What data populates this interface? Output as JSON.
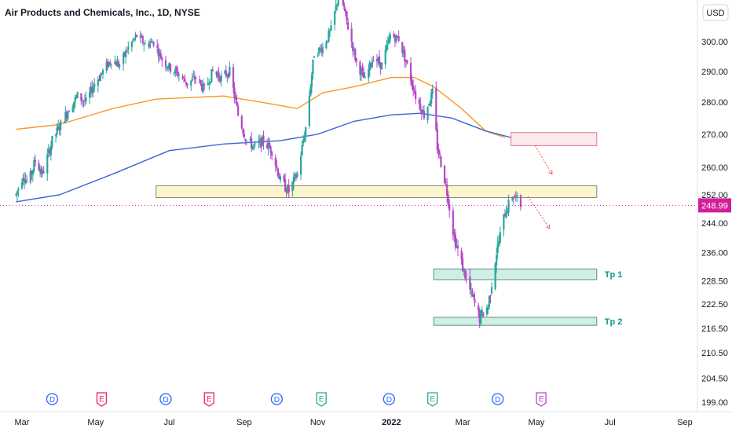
{
  "chart_title": "Air Products and Chemicals, Inc., 1D, NYSE",
  "currency": "USD",
  "current_price": "248.99",
  "colors": {
    "up": "#26a69a",
    "down": "#b548c6",
    "ma_fast": "#f59b23",
    "ma_slow": "#3b65d8",
    "price_line": "#d11f9a",
    "resistance_zone": "#fde9ec",
    "support_zone": "#fcf5cf",
    "target_zone": "#cfeee4",
    "target_text": "#089981",
    "dividend_badge": "#2962ff",
    "earnings_up": "#26a69a",
    "earnings_down": "#e91e63"
  },
  "chart_data": {
    "type": "candlestick",
    "title": "Air Products and Chemicals, Inc., 1D, NYSE",
    "y_axis": {
      "ticks": [
        300.0,
        290.0,
        280.0,
        270.0,
        260.0,
        252.0,
        244.0,
        236.0,
        228.5,
        222.5,
        216.5,
        210.5,
        204.5,
        199.0
      ],
      "tick_labels": [
        "300.00",
        "290.00",
        "280.00",
        "270.00",
        "260.00",
        "252.00",
        "244.00",
        "236.00",
        "228.50",
        "222.50",
        "216.50",
        "210.50",
        "204.50",
        "199.00"
      ],
      "range": [
        195,
        312
      ],
      "log_scale": true
    },
    "x_axis": {
      "labels": [
        "Mar",
        "May",
        "Jul",
        "Sep",
        "Nov",
        "2022",
        "Mar",
        "May",
        "Jul",
        "Sep"
      ],
      "bold": [
        false,
        false,
        false,
        false,
        false,
        true,
        false,
        false,
        false,
        false
      ],
      "dates": [
        "2021-03-01",
        "2021-05-01",
        "2021-07-01",
        "2021-09-01",
        "2021-11-01",
        "2022-01-01",
        "2022-03-01",
        "2022-05-01",
        "2022-07-01",
        "2022-09-01"
      ]
    },
    "price_path": [
      [
        "2021-02-24",
        252
      ],
      [
        "2021-03-02",
        258
      ],
      [
        "2021-03-06",
        255
      ],
      [
        "2021-03-12",
        262
      ],
      [
        "2021-03-18",
        258
      ],
      [
        "2021-03-26",
        268
      ],
      [
        "2021-04-02",
        273
      ],
      [
        "2021-04-09",
        278
      ],
      [
        "2021-04-16",
        282
      ],
      [
        "2021-04-23",
        280
      ],
      [
        "2021-04-30",
        286
      ],
      [
        "2021-05-07",
        290
      ],
      [
        "2021-05-14",
        294
      ],
      [
        "2021-05-21",
        292
      ],
      [
        "2021-05-28",
        298
      ],
      [
        "2021-06-04",
        302
      ],
      [
        "2021-06-11",
        299
      ],
      [
        "2021-06-18",
        300
      ],
      [
        "2021-06-25",
        294
      ],
      [
        "2021-07-02",
        291
      ],
      [
        "2021-07-09",
        289
      ],
      [
        "2021-07-16",
        286
      ],
      [
        "2021-07-23",
        288
      ],
      [
        "2021-07-30",
        284
      ],
      [
        "2021-08-06",
        290
      ],
      [
        "2021-08-13",
        288
      ],
      [
        "2021-08-20",
        290
      ],
      [
        "2021-08-27",
        276
      ],
      [
        "2021-09-03",
        268
      ],
      [
        "2021-09-10",
        266
      ],
      [
        "2021-09-17",
        268
      ],
      [
        "2021-09-24",
        265
      ],
      [
        "2021-10-01",
        256
      ],
      [
        "2021-10-08",
        253
      ],
      [
        "2021-10-15",
        258
      ],
      [
        "2021-10-22",
        272
      ],
      [
        "2021-10-29",
        296
      ],
      [
        "2021-11-05",
        298
      ],
      [
        "2021-11-12",
        304
      ],
      [
        "2021-11-19",
        318
      ],
      [
        "2021-11-26",
        305
      ],
      [
        "2021-12-03",
        293
      ],
      [
        "2021-12-10",
        287
      ],
      [
        "2021-12-17",
        295
      ],
      [
        "2021-12-24",
        292
      ],
      [
        "2021-12-31",
        302
      ],
      [
        "2022-01-07",
        301
      ],
      [
        "2022-01-14",
        292
      ],
      [
        "2022-01-21",
        282
      ],
      [
        "2022-01-28",
        276
      ],
      [
        "2022-02-04",
        283
      ],
      [
        "2022-02-08",
        266
      ],
      [
        "2022-02-15",
        255
      ],
      [
        "2022-02-22",
        240
      ],
      [
        "2022-03-01",
        232
      ],
      [
        "2022-03-08",
        225
      ],
      [
        "2022-03-15",
        219
      ],
      [
        "2022-03-22",
        222
      ],
      [
        "2022-03-29",
        236
      ],
      [
        "2022-04-05",
        247
      ],
      [
        "2022-04-12",
        252
      ],
      [
        "2022-04-18",
        249
      ]
    ],
    "moving_averages": [
      {
        "color_key": "ma_fast",
        "points": [
          [
            "2021-02-24",
            271.5
          ],
          [
            "2021-04-01",
            273
          ],
          [
            "2021-05-15",
            278
          ],
          [
            "2021-06-20",
            281
          ],
          [
            "2021-08-15",
            282
          ],
          [
            "2021-09-15",
            280
          ],
          [
            "2021-10-15",
            278
          ],
          [
            "2021-11-05",
            283
          ],
          [
            "2021-12-01",
            285
          ],
          [
            "2022-01-01",
            288
          ],
          [
            "2022-01-20",
            288
          ],
          [
            "2022-02-05",
            285
          ],
          [
            "2022-02-28",
            278
          ],
          [
            "2022-03-20",
            271
          ],
          [
            "2022-04-05",
            269
          ]
        ]
      },
      {
        "color_key": "ma_slow",
        "points": [
          [
            "2021-02-24",
            250
          ],
          [
            "2021-04-01",
            252
          ],
          [
            "2021-05-15",
            258
          ],
          [
            "2021-07-01",
            265
          ],
          [
            "2021-08-15",
            267
          ],
          [
            "2021-10-01",
            268
          ],
          [
            "2021-11-01",
            270
          ],
          [
            "2021-12-01",
            274
          ],
          [
            "2022-01-01",
            276
          ],
          [
            "2022-01-25",
            276.5
          ],
          [
            "2022-02-20",
            275
          ],
          [
            "2022-03-20",
            271
          ],
          [
            "2022-04-10",
            269
          ]
        ]
      }
    ],
    "zones": [
      {
        "kind": "resistance_zone",
        "from": "2022-04-10",
        "to": "2022-06-20",
        "low": 266.5,
        "high": 270.5,
        "label": ""
      },
      {
        "kind": "support_zone",
        "from": "2021-06-20",
        "to": "2022-06-20",
        "low": 251.2,
        "high": 254.6,
        "label": ""
      },
      {
        "kind": "target_zone",
        "from": "2022-02-05",
        "to": "2022-06-20",
        "low": 228.8,
        "high": 231.6,
        "label": "Tp 1"
      },
      {
        "kind": "target_zone",
        "from": "2022-02-05",
        "to": "2022-06-20",
        "low": 217.2,
        "high": 219.2,
        "label": "Tp 2"
      }
    ],
    "projections": [
      {
        "from": [
          "2022-04-30",
          266.5
        ],
        "to": [
          "2022-05-14",
          258
        ]
      },
      {
        "from": [
          "2022-04-24",
          251.5
        ],
        "to": [
          "2022-05-12",
          242.5
        ]
      }
    ],
    "events": [
      {
        "type": "D",
        "date": "2021-03-26"
      },
      {
        "type": "E",
        "date": "2021-05-06"
      },
      {
        "type": "D",
        "date": "2021-06-28"
      },
      {
        "type": "E",
        "date": "2021-08-03"
      },
      {
        "type": "D",
        "date": "2021-09-28"
      },
      {
        "type": "E",
        "date": "2021-11-04"
      },
      {
        "type": "D",
        "date": "2021-12-30"
      },
      {
        "type": "E",
        "date": "2022-02-04"
      },
      {
        "type": "D",
        "date": "2022-03-30"
      },
      {
        "type": "E",
        "date": "2022-05-05"
      }
    ]
  }
}
